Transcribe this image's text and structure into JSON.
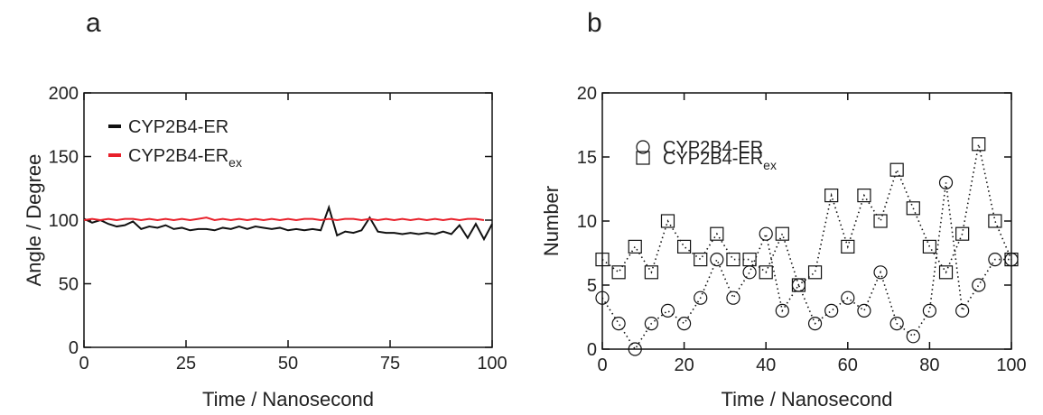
{
  "chart_data": [
    {
      "type": "line",
      "panel_label": "a",
      "x_label": "Time / Nanosecond",
      "y_label": "Angle / Degree",
      "xlim": [
        0,
        100
      ],
      "ylim": [
        0,
        200
      ],
      "xticks": [
        0,
        25,
        50,
        75,
        100
      ],
      "yticks": [
        0,
        50,
        100,
        150,
        200
      ],
      "series": [
        {
          "name": "CYP2B4-ER",
          "color": "#111111",
          "line_style": "solid",
          "x": [
            0,
            2,
            4,
            6,
            8,
            10,
            12,
            14,
            16,
            18,
            20,
            22,
            24,
            26,
            28,
            30,
            32,
            34,
            36,
            38,
            40,
            42,
            44,
            46,
            48,
            50,
            52,
            54,
            56,
            58,
            60,
            62,
            64,
            66,
            68,
            70,
            72,
            74,
            76,
            78,
            80,
            82,
            84,
            86,
            88,
            90,
            92,
            94,
            96,
            98,
            100
          ],
          "values": [
            101,
            98,
            100,
            97,
            95,
            96,
            99,
            93,
            95,
            94,
            96,
            93,
            94,
            92,
            93,
            93,
            92,
            94,
            93,
            95,
            93,
            95,
            94,
            93,
            94,
            92,
            93,
            92,
            93,
            92,
            110,
            88,
            91,
            90,
            92,
            102,
            91,
            90,
            90,
            89,
            90,
            89,
            90,
            89,
            91,
            89,
            96,
            86,
            97,
            85,
            97
          ]
        },
        {
          "name": "CYP2B4-ER",
          "name_subscript": "ex",
          "color": "#e8202a",
          "line_style": "solid",
          "x": [
            0,
            2,
            4,
            6,
            8,
            10,
            12,
            14,
            16,
            18,
            20,
            22,
            24,
            26,
            28,
            30,
            32,
            34,
            36,
            38,
            40,
            42,
            44,
            46,
            48,
            50,
            52,
            54,
            56,
            58,
            60,
            62,
            64,
            66,
            68,
            70,
            72,
            74,
            76,
            78,
            80,
            82,
            84,
            86,
            88,
            90,
            92,
            94,
            96,
            98
          ],
          "values": [
            100,
            101,
            100,
            101,
            100,
            101,
            101,
            100,
            101,
            100,
            101,
            100,
            101,
            100,
            101,
            102,
            100,
            101,
            100,
            101,
            100,
            101,
            100,
            101,
            100,
            101,
            100,
            101,
            101,
            100,
            101,
            100,
            101,
            101,
            100,
            101,
            100,
            101,
            100,
            101,
            100,
            101,
            100,
            101,
            100,
            101,
            100,
            101,
            101,
            100
          ]
        }
      ]
    },
    {
      "type": "line",
      "panel_label": "b",
      "x_label": "Time / Nanosecond",
      "y_label": "Number",
      "xlim": [
        0,
        100
      ],
      "ylim": [
        0,
        20
      ],
      "xticks": [
        0,
        20,
        40,
        60,
        80,
        100
      ],
      "yticks": [
        0,
        5,
        10,
        15,
        20
      ],
      "series": [
        {
          "name": "CYP2B4-ER",
          "color": "#111111",
          "line_style": "dotted",
          "marker": "circle",
          "x": [
            0,
            4,
            8,
            12,
            16,
            20,
            24,
            28,
            32,
            36,
            40,
            44,
            48,
            52,
            56,
            60,
            64,
            68,
            72,
            76,
            80,
            84,
            88,
            92,
            96,
            100
          ],
          "values": [
            4,
            2,
            0,
            2,
            3,
            2,
            4,
            7,
            4,
            6,
            9,
            3,
            5,
            2,
            3,
            4,
            3,
            6,
            2,
            1,
            3,
            13,
            3,
            5,
            7,
            7
          ]
        },
        {
          "name": "CYP2B4-ER",
          "name_subscript": "ex",
          "color": "#111111",
          "line_style": "dotted",
          "marker": "square",
          "x": [
            0,
            4,
            8,
            12,
            16,
            20,
            24,
            28,
            32,
            36,
            40,
            44,
            48,
            52,
            56,
            60,
            64,
            68,
            72,
            76,
            80,
            84,
            88,
            92,
            96,
            100
          ],
          "values": [
            7,
            6,
            8,
            6,
            10,
            8,
            7,
            9,
            7,
            7,
            6,
            9,
            5,
            6,
            12,
            8,
            12,
            10,
            14,
            11,
            8,
            6,
            9,
            16,
            10,
            7
          ]
        }
      ]
    }
  ]
}
